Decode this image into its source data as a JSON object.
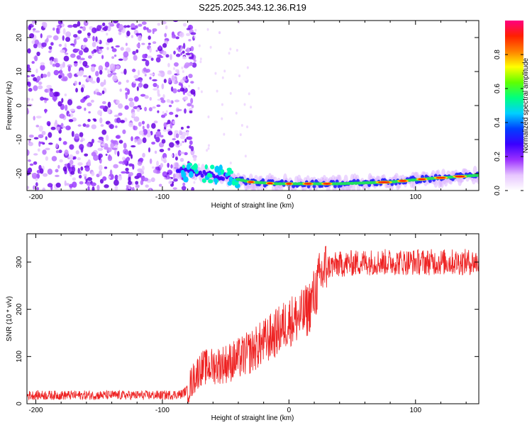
{
  "title": "S225.2025.343.12.36.R19",
  "chart_data": [
    {
      "type": "heatmap",
      "xlabel": "Height of straight line (km)",
      "ylabel": "Frequency (Hz)",
      "xlim": [
        -207,
        150
      ],
      "ylim": [
        -25,
        25
      ],
      "xticks": [
        -200,
        -100,
        0,
        100
      ],
      "yticks": [
        -20,
        -10,
        0,
        10,
        20
      ],
      "colorbar": {
        "label": "Normalized spectral amplitude",
        "range": [
          0,
          1
        ],
        "ticks": [
          "0.0",
          "0.2",
          "0.4",
          "0.6",
          "0.8"
        ],
        "colors": [
          "#ffffff",
          "#e7c6ff",
          "#9b30ff",
          "#3a00ff",
          "#0040ff",
          "#00d0ff",
          "#00ff80",
          "#60ff00",
          "#ffff00",
          "#ff8000",
          "#ff2000",
          "#ff0080"
        ]
      },
      "noise_region_x": [
        -207,
        -80
      ],
      "signal_track": [
        {
          "x": -85,
          "f": -19
        },
        {
          "x": -70,
          "f": -20
        },
        {
          "x": -50,
          "f": -21
        },
        {
          "x": -30,
          "f": -22.5
        },
        {
          "x": -10,
          "f": -23
        },
        {
          "x": 10,
          "f": -23
        },
        {
          "x": 40,
          "f": -23
        },
        {
          "x": 80,
          "f": -22.5
        },
        {
          "x": 110,
          "f": -21.5
        },
        {
          "x": 150,
          "f": -20.5
        }
      ]
    },
    {
      "type": "line",
      "xlabel": "Height of straight line (km)",
      "ylabel": "SNR (10 * v/v)",
      "xlim": [
        -207,
        150
      ],
      "ylim": [
        0,
        360
      ],
      "xticks": [
        -200,
        -100,
        0,
        100
      ],
      "yticks": [
        0,
        100,
        200,
        300
      ],
      "series": [
        {
          "name": "SNR",
          "color": "#ee2222",
          "x": [
            -207,
            -150,
            -100,
            -85,
            -80,
            -75,
            -70,
            -60,
            -50,
            -40,
            -30,
            -20,
            -10,
            0,
            10,
            15,
            20,
            25,
            30,
            40,
            60,
            80,
            100,
            120,
            150
          ],
          "y": [
            18,
            18,
            18,
            20,
            30,
            55,
            75,
            80,
            85,
            95,
            110,
            130,
            150,
            175,
            185,
            200,
            230,
            270,
            290,
            295,
            300,
            300,
            300,
            300,
            300
          ]
        }
      ]
    }
  ]
}
